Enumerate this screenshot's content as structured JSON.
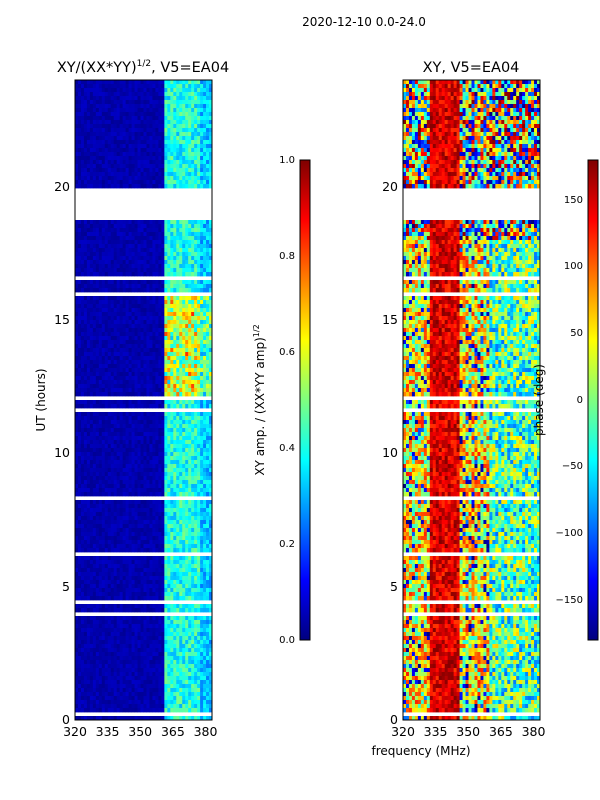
{
  "figure": {
    "suptitle": "2020-12-10 0.0-24.0",
    "xlabel": "frequency (MHz)",
    "ylabel": "UT (hours)"
  },
  "chart_data": [
    {
      "type": "heatmap",
      "title_prefix": "XY/(XX*YY)",
      "title_exponent": "1/2",
      "title_suffix": ", V5=EA04",
      "xlabel": "frequency (MHz)",
      "ylabel": "UT (hours)",
      "xlim": [
        320,
        383
      ],
      "ylim": [
        0,
        24
      ],
      "xticks": [
        320,
        335,
        350,
        365,
        380
      ],
      "yticks": [
        0,
        5,
        10,
        15,
        20
      ],
      "colorbar": {
        "label_text": "XY amp. / (XX*YY amp)",
        "label_exponent": "1/2",
        "range": [
          0.0,
          1.0
        ],
        "ticks": [
          "0.0",
          "0.2",
          "0.4",
          "0.6",
          "0.8",
          "1.0"
        ],
        "colormap": "jet"
      },
      "description": "Amplitude near 0 below ~360 MHz; 0.2-0.7 streaks between ~361-378 MHz, peaking ~0.7 around 12-16 UT."
    },
    {
      "type": "heatmap",
      "title": "XY, V5=EA04",
      "xlabel": "frequency (MHz)",
      "xlim": [
        320,
        383
      ],
      "ylim": [
        0,
        24
      ],
      "xticks": [
        320,
        335,
        350,
        365,
        380
      ],
      "yticks": [
        0,
        5,
        10,
        15,
        20
      ],
      "colorbar": {
        "label": "phase (deg)",
        "range": [
          -180,
          180
        ],
        "ticks": [
          "−150",
          "−100",
          "−50",
          "0",
          "50",
          "100",
          "150"
        ],
        "colormap": "jet"
      },
      "description": "Phase near +180 deg around 335-345 MHz, mixed green/yellow elsewhere; later hours 18-24 UT more varied."
    }
  ],
  "gaps_hours": [
    [
      0.2,
      0.35
    ],
    [
      1.6,
      1.65
    ],
    [
      3.9,
      4.05
    ],
    [
      4.4,
      4.5
    ],
    [
      6.15,
      6.25
    ],
    [
      7.75,
      7.85
    ],
    [
      8.3,
      8.4
    ],
    [
      10.3,
      10.4
    ],
    [
      11.55,
      11.7
    ],
    [
      12.0,
      12.1
    ],
    [
      15.95,
      16.1
    ],
    [
      16.45,
      16.6
    ],
    [
      17.65,
      17.75
    ],
    [
      18.55,
      18.65
    ],
    [
      18.7,
      19.85
    ],
    [
      19.85,
      20.0
    ],
    [
      20.5,
      20.55
    ],
    [
      21.25,
      21.35
    ]
  ]
}
